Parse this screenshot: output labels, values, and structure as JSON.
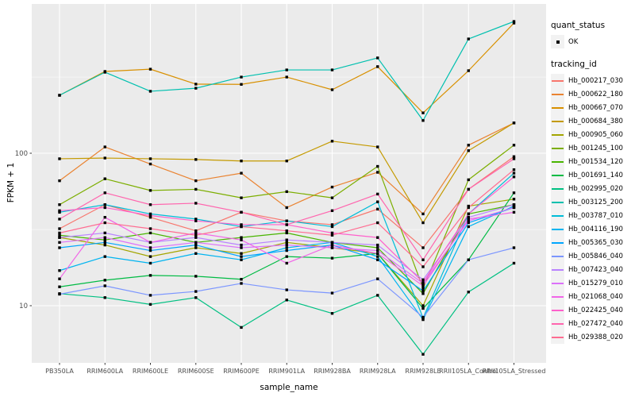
{
  "chart_data": {
    "type": "line",
    "title": "",
    "xlabel": "sample_name",
    "ylabel": "FPKM + 1",
    "y_scale": "log10",
    "ylim": [
      4.2,
      1000
    ],
    "grid": true,
    "panel_bg": "#EBEBEB",
    "grid_color": "#FFFFFF",
    "marker": {
      "shape": "square",
      "color": "#000000",
      "meaning": "quant_status OK"
    },
    "x_categories": [
      "PB350LA",
      "RRIM600LA",
      "RRIM600LE",
      "RRIM600SE",
      "RRIM600PE",
      "RRIM901LA",
      "RRIM928BA",
      "RRIM928LA",
      "RRIM928LE",
      "RRII105LA_Control",
      "RRII105LA_Stressed"
    ],
    "y_ticks": [
      {
        "label": "100",
        "value": 100
      },
      {
        "label": "10",
        "value": 10
      }
    ],
    "y_minor_gridlines": [
      31.6,
      316
    ],
    "legend": {
      "position": "right",
      "quant_status_title": "quant_status",
      "quant_status_items": [
        {
          "label": "OK",
          "marker": "point",
          "color": "#000000"
        }
      ],
      "tracking_id_title": "tracking_id"
    },
    "series": [
      {
        "name": "Hb_000217_030",
        "color": "#F8766D",
        "values": [
          32,
          46,
          38,
          31,
          41,
          36,
          34,
          43,
          24,
          58,
          95
        ]
      },
      {
        "name": "Hb_000622_180",
        "color": "#EA8331",
        "values": [
          66,
          110,
          85,
          66,
          74,
          44,
          60,
          75,
          40,
          113,
          158
        ]
      },
      {
        "name": "Hb_000667_070",
        "color": "#D89000",
        "values": [
          240,
          344,
          356,
          284,
          283,
          316,
          261,
          370,
          184,
          348,
          714
        ]
      },
      {
        "name": "Hb_000684_380",
        "color": "#C49A00",
        "values": [
          92,
          93,
          92,
          91,
          89,
          89,
          120,
          110,
          35,
          104,
          158
        ]
      },
      {
        "name": "Hb_000905_060",
        "color": "#A3A500",
        "values": [
          28,
          25,
          21,
          24,
          22,
          26,
          24,
          22,
          10,
          45,
          50
        ]
      },
      {
        "name": "Hb_001245_100",
        "color": "#7CAE00",
        "values": [
          46,
          68,
          57,
          58,
          51,
          56,
          51,
          82,
          13,
          67,
          113
        ]
      },
      {
        "name": "Hb_001534_120",
        "color": "#49B500",
        "values": [
          29,
          27,
          30,
          26,
          28,
          30,
          26,
          24,
          12,
          40,
          46
        ]
      },
      {
        "name": "Hb_001691_140",
        "color": "#00BB44",
        "values": [
          13.3,
          14.7,
          15.8,
          15.6,
          14.9,
          21,
          20.5,
          22,
          9.6,
          20,
          55
        ]
      },
      {
        "name": "Hb_002995_020",
        "color": "#00C082",
        "values": [
          12,
          11.3,
          10.2,
          11.3,
          7.2,
          10.9,
          8.9,
          11.7,
          4.8,
          12.3,
          19
        ]
      },
      {
        "name": "Hb_003125_200",
        "color": "#00C0AF",
        "values": [
          240,
          340,
          255,
          267,
          316,
          352,
          352,
          422,
          164,
          562,
          732
        ]
      },
      {
        "name": "Hb_003787_010",
        "color": "#00BCD8",
        "values": [
          41,
          46,
          40,
          37,
          33,
          36,
          33,
          48,
          8.3,
          40,
          74
        ]
      },
      {
        "name": "Hb_004116_190",
        "color": "#00B4F0",
        "values": [
          17,
          21,
          19,
          22,
          20,
          24,
          26,
          21,
          8.1,
          33,
          45
        ]
      },
      {
        "name": "Hb_005365_030",
        "color": "#00A6FF",
        "values": [
          24,
          26,
          23,
          25,
          21,
          23,
          25,
          20,
          12.5,
          35,
          44
        ]
      },
      {
        "name": "Hb_005846_040",
        "color": "#7C96FF",
        "values": [
          11.9,
          13.5,
          11.7,
          12.4,
          14,
          12.7,
          12.1,
          15,
          8.4,
          20,
          24
        ]
      },
      {
        "name": "Hb_007423_040",
        "color": "#B983FF",
        "values": [
          28,
          30,
          26,
          28,
          25,
          27,
          26,
          25,
          14.8,
          38,
          46
        ]
      },
      {
        "name": "Hb_015279_010",
        "color": "#DC71FA",
        "values": [
          26,
          28,
          24,
          26,
          24,
          25,
          24,
          23,
          14,
          36,
          44
        ]
      },
      {
        "name": "Hb_021068_040",
        "color": "#F166E8",
        "values": [
          15,
          38,
          26,
          30,
          27,
          19,
          25,
          22,
          13.5,
          37,
          41
        ]
      },
      {
        "name": "Hb_022425_040",
        "color": "#FF61CC",
        "values": [
          42,
          44,
          39,
          36,
          34,
          34,
          30,
          28,
          14.2,
          40,
          70
        ]
      },
      {
        "name": "Hb_027472_040",
        "color": "#FF65AE",
        "values": [
          37,
          55,
          46,
          47,
          41,
          34,
          42,
          54,
          20,
          58,
          92
        ]
      },
      {
        "name": "Hb_029388_020",
        "color": "#FF6C91",
        "values": [
          30,
          35,
          32,
          29,
          33,
          31,
          29,
          35,
          18,
          44,
          78
        ]
      }
    ]
  }
}
